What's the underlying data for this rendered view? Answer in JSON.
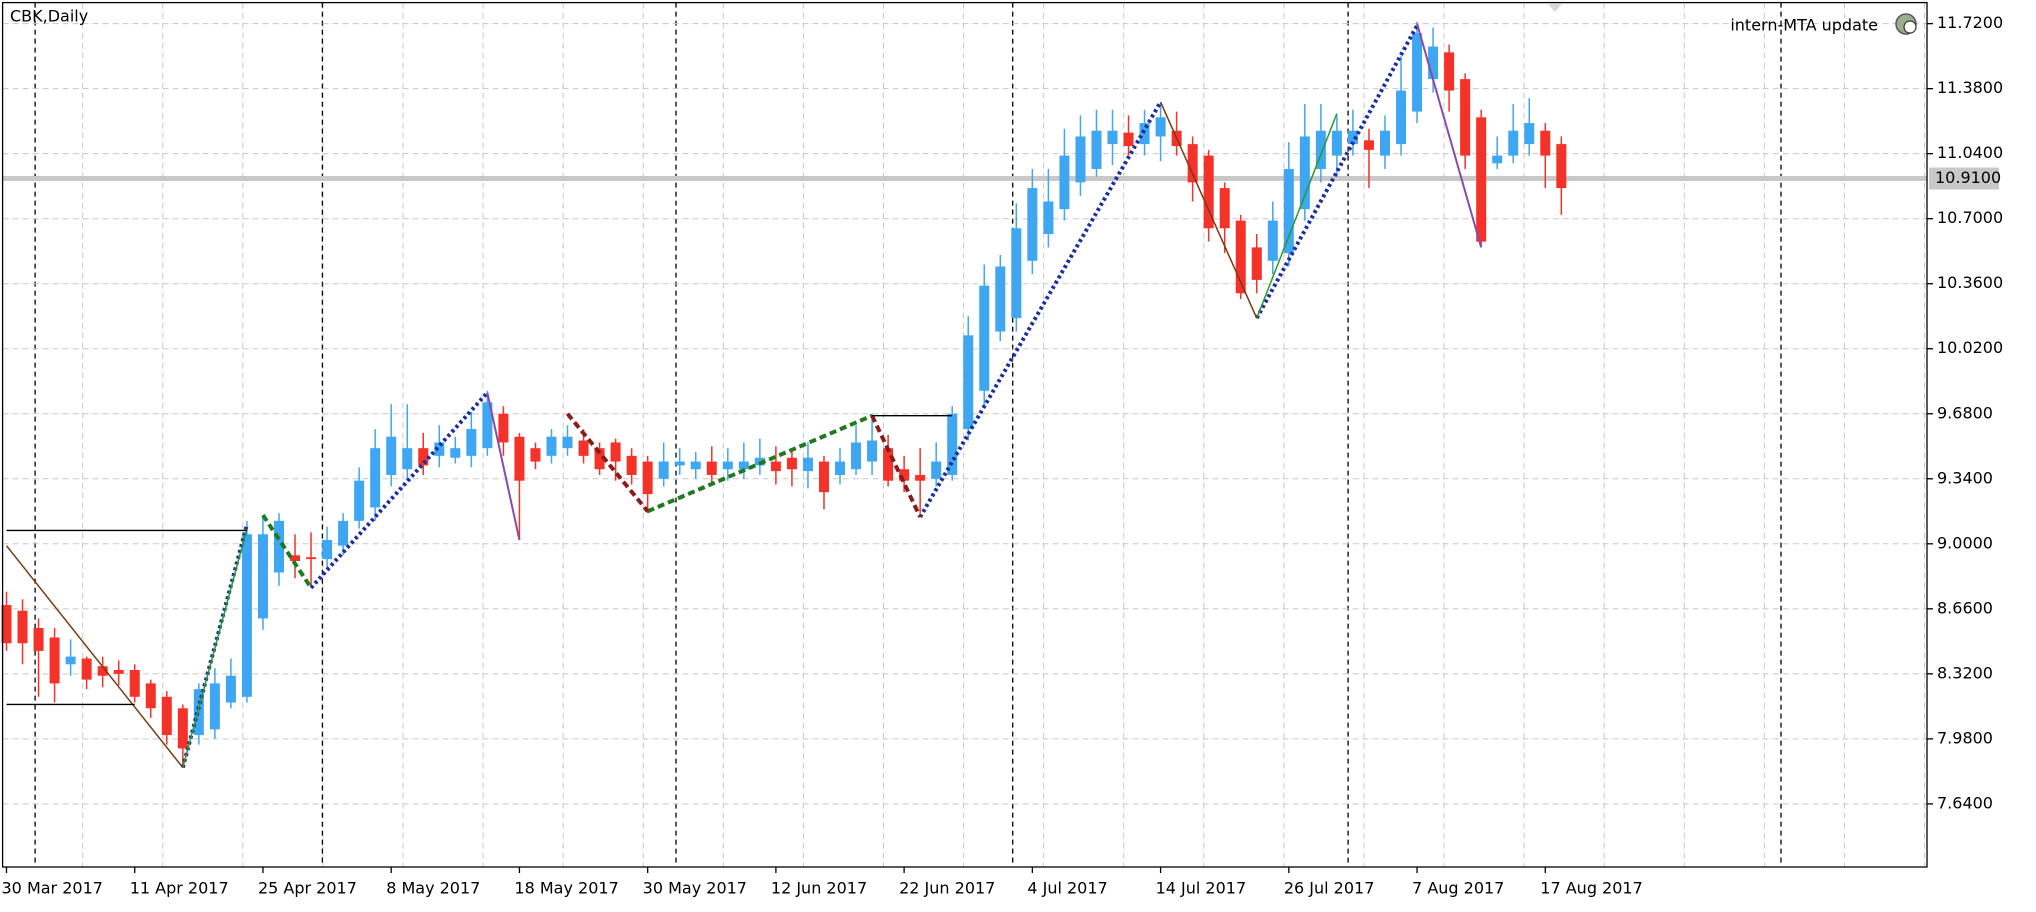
{
  "chart_data": {
    "type": "candlestick",
    "title": "CBK,Daily",
    "indicator_label": "intern-MTA update",
    "categories": [
      "30 Mar 2017",
      null,
      null,
      null,
      null,
      null,
      null,
      null,
      "11 Apr 2017",
      null,
      null,
      null,
      null,
      null,
      null,
      null,
      "25 Apr 2017",
      null,
      null,
      null,
      null,
      null,
      null,
      null,
      "8 May 2017",
      null,
      null,
      null,
      null,
      null,
      null,
      null,
      "18 May 2017",
      null,
      null,
      null,
      null,
      null,
      null,
      null,
      "30 May 2017",
      null,
      null,
      null,
      null,
      null,
      null,
      null,
      "12 Jun 2017",
      null,
      null,
      null,
      null,
      null,
      null,
      null,
      "22 Jun 2017",
      null,
      null,
      null,
      null,
      null,
      null,
      null,
      "4 Jul 2017",
      null,
      null,
      null,
      null,
      null,
      null,
      null,
      "14 Jul 2017",
      null,
      null,
      null,
      null,
      null,
      null,
      null,
      "26 Jul 2017",
      null,
      null,
      null,
      null,
      null,
      null,
      null,
      "7 Aug 2017",
      null,
      null,
      null,
      null,
      null,
      null,
      null,
      "17 Aug 2017",
      null
    ],
    "open": [
      8.68,
      8.65,
      8.56,
      8.51,
      8.37,
      8.4,
      8.36,
      8.34,
      8.34,
      8.27,
      8.2,
      8.14,
      8.0,
      8.03,
      8.17,
      8.2,
      8.61,
      8.85,
      8.94,
      8.93,
      8.92,
      8.99,
      9.12,
      9.19,
      9.36,
      9.39,
      9.5,
      9.46,
      9.45,
      9.46,
      9.5,
      9.68,
      9.56,
      9.5,
      9.46,
      9.5,
      9.54,
      9.5,
      9.53,
      9.46,
      9.43,
      9.34,
      9.41,
      9.39,
      9.43,
      9.39,
      9.39,
      9.41,
      9.43,
      9.45,
      9.38,
      9.43,
      9.36,
      9.39,
      9.43,
      9.5,
      9.39,
      9.36,
      9.34,
      9.36,
      9.6,
      9.8,
      10.11,
      10.18,
      10.48,
      10.62,
      10.75,
      10.89,
      10.96,
      11.09,
      11.15,
      11.09,
      11.13,
      11.16,
      11.09,
      11.03,
      10.86,
      10.69,
      10.55,
      10.48,
      10.52,
      10.75,
      10.96,
      11.03,
      11.09,
      11.11,
      11.03,
      11.09,
      11.26,
      11.43,
      11.57,
      11.43,
      11.23,
      10.99,
      11.03,
      11.09,
      11.16,
      11.09
    ],
    "high": [
      8.75,
      8.71,
      8.61,
      8.56,
      8.5,
      8.41,
      8.41,
      8.39,
      8.37,
      8.29,
      8.23,
      8.16,
      8.27,
      8.35,
      8.4,
      9.12,
      9.15,
      9.16,
      9.05,
      9.06,
      9.09,
      9.16,
      9.4,
      9.6,
      9.73,
      9.73,
      9.58,
      9.62,
      9.56,
      9.69,
      9.8,
      9.72,
      9.58,
      9.53,
      9.6,
      9.62,
      9.6,
      9.53,
      9.55,
      9.5,
      9.46,
      9.53,
      9.5,
      9.48,
      9.51,
      9.5,
      9.53,
      9.55,
      9.51,
      9.5,
      9.53,
      9.46,
      9.5,
      9.62,
      9.68,
      9.57,
      9.46,
      9.5,
      9.53,
      9.72,
      10.19,
      10.46,
      10.51,
      10.78,
      10.96,
      10.96,
      11.17,
      11.24,
      11.27,
      11.27,
      11.24,
      11.27,
      11.31,
      11.26,
      11.13,
      11.06,
      10.89,
      10.72,
      10.62,
      10.79,
      11.1,
      11.3,
      11.3,
      11.24,
      11.27,
      11.17,
      11.24,
      11.55,
      11.73,
      11.7,
      11.61,
      11.46,
      11.27,
      11.13,
      11.3,
      11.33,
      11.2,
      11.13
    ],
    "low": [
      8.44,
      8.37,
      8.2,
      8.17,
      8.31,
      8.24,
      8.25,
      8.26,
      8.17,
      8.09,
      7.95,
      7.83,
      7.95,
      7.98,
      8.14,
      8.17,
      8.55,
      8.78,
      8.82,
      8.78,
      8.87,
      8.94,
      9.08,
      9.12,
      9.3,
      9.33,
      9.36,
      9.4,
      9.42,
      9.4,
      9.46,
      9.46,
      9.02,
      9.39,
      9.42,
      9.46,
      9.42,
      9.36,
      9.33,
      9.31,
      9.16,
      9.3,
      9.36,
      9.34,
      9.31,
      9.33,
      9.34,
      9.36,
      9.31,
      9.3,
      9.29,
      9.18,
      9.31,
      9.36,
      9.36,
      9.3,
      9.27,
      9.16,
      9.3,
      9.33,
      9.54,
      9.72,
      10.06,
      10.11,
      10.41,
      10.55,
      10.69,
      10.82,
      10.92,
      10.98,
      11.03,
      11.03,
      11.0,
      11.03,
      10.79,
      10.58,
      10.52,
      10.28,
      10.31,
      10.41,
      10.45,
      10.69,
      10.89,
      10.92,
      11.03,
      10.86,
      10.96,
      11.03,
      11.2,
      11.36,
      11.26,
      10.96,
      10.55,
      10.96,
      10.99,
      11.03,
      10.86,
      10.72
    ],
    "close": [
      8.48,
      8.48,
      8.44,
      8.27,
      8.41,
      8.29,
      8.31,
      8.32,
      8.2,
      8.14,
      8.0,
      7.93,
      8.24,
      8.27,
      8.31,
      9.05,
      9.05,
      9.12,
      8.91,
      8.92,
      9.02,
      9.12,
      9.33,
      9.5,
      9.56,
      9.5,
      9.41,
      9.53,
      9.5,
      9.6,
      9.74,
      9.53,
      9.33,
      9.43,
      9.56,
      9.56,
      9.46,
      9.39,
      9.43,
      9.36,
      9.26,
      9.43,
      9.43,
      9.43,
      9.36,
      9.43,
      9.43,
      9.45,
      9.38,
      9.39,
      9.45,
      9.27,
      9.43,
      9.53,
      9.54,
      9.33,
      9.33,
      9.33,
      9.43,
      9.68,
      10.09,
      10.35,
      10.45,
      10.65,
      10.86,
      10.79,
      11.03,
      11.13,
      11.16,
      11.16,
      11.08,
      11.2,
      11.23,
      11.08,
      10.89,
      10.65,
      10.65,
      10.31,
      10.38,
      10.69,
      10.96,
      11.13,
      11.16,
      11.16,
      11.16,
      11.06,
      11.16,
      11.37,
      11.67,
      11.6,
      11.37,
      11.03,
      10.58,
      11.03,
      11.16,
      11.2,
      11.03,
      10.86
    ],
    "up_color": "#3fa6f2",
    "down_color": "#f5322a",
    "ylim": [
      7.31,
      11.83
    ],
    "yticks": [
      {
        "value": 7.64,
        "label": "7.6400"
      },
      {
        "value": 7.98,
        "label": "7.9800"
      },
      {
        "value": 8.32,
        "label": "8.3200"
      },
      {
        "value": 8.66,
        "label": "8.6600"
      },
      {
        "value": 9.0,
        "label": "9.0000"
      },
      {
        "value": 9.34,
        "label": "9.3400"
      },
      {
        "value": 9.68,
        "label": "9.6800"
      },
      {
        "value": 10.02,
        "label": "10.0200"
      },
      {
        "value": 10.36,
        "label": "10.3600"
      },
      {
        "value": 10.7,
        "label": "10.7000"
      },
      {
        "value": 11.04,
        "label": "11.0400"
      },
      {
        "value": 11.38,
        "label": "11.3800"
      },
      {
        "value": 11.72,
        "label": "11.7200"
      }
    ],
    "grid": true,
    "price_line": {
      "value": 10.91,
      "label": "10.9100",
      "color": "#c8c8c8"
    },
    "overlays": [
      {
        "color": "#1b2f9e",
        "dash": "3 3",
        "width": 4,
        "x": [
          11,
          15
        ],
        "values": [
          7.83,
          9.1
        ]
      },
      {
        "color": "#1b2f9e",
        "dash": "3 3",
        "width": 4,
        "x": [
          19,
          30
        ],
        "values": [
          8.77,
          9.79
        ]
      },
      {
        "color": "#1b2f9e",
        "dash": "3 3",
        "width": 4,
        "x": [
          57,
          72
        ],
        "values": [
          9.14,
          11.31
        ]
      },
      {
        "color": "#1b2f9e",
        "dash": "3 3",
        "width": 4,
        "x": [
          78,
          88
        ],
        "values": [
          10.18,
          11.71
        ]
      },
      {
        "color": "#1e7a1e",
        "dash": "7 4",
        "width": 4,
        "x": [
          16,
          19
        ],
        "values": [
          9.15,
          8.77
        ]
      },
      {
        "color": "#1e7a1e",
        "dash": "7 4",
        "width": 4,
        "x": [
          40,
          54
        ],
        "values": [
          9.17,
          9.67
        ]
      },
      {
        "color": "#8b1a1a",
        "dash": "7 4",
        "width": 4,
        "x": [
          35,
          40
        ],
        "values": [
          9.68,
          9.17
        ]
      },
      {
        "color": "#8b1a1a",
        "dash": "7 4",
        "width": 4,
        "x": [
          54,
          57
        ],
        "values": [
          9.67,
          9.14
        ]
      },
      {
        "color": "#2a9a2a",
        "dash": "none",
        "width": 1.5,
        "x": [
          11,
          15
        ],
        "values": [
          7.83,
          9.08
        ]
      },
      {
        "color": "#2a9a2a",
        "dash": "none",
        "width": 1.5,
        "x": [
          78,
          83
        ],
        "values": [
          10.18,
          11.25
        ]
      },
      {
        "color": "#7a3a10",
        "dash": "none",
        "width": 1.5,
        "x": [
          0,
          11
        ],
        "values": [
          8.99,
          7.83
        ]
      },
      {
        "color": "#7a3a10",
        "dash": "none",
        "width": 1.5,
        "x": [
          72,
          78
        ],
        "values": [
          11.31,
          10.18
        ]
      },
      {
        "color": "#8a4aa8",
        "dash": "none",
        "width": 2,
        "x": [
          30,
          32
        ],
        "values": [
          9.79,
          9.02
        ]
      },
      {
        "color": "#8a4aa8",
        "dash": "none",
        "width": 2,
        "x": [
          88,
          92
        ],
        "values": [
          11.72,
          10.55
        ]
      },
      {
        "color": "#000000",
        "dash": "none",
        "width": 1.3,
        "x": [
          0,
          15
        ],
        "values": [
          9.07,
          9.07
        ]
      },
      {
        "color": "#000000",
        "dash": "none",
        "width": 1.3,
        "x": [
          0,
          8
        ],
        "values": [
          8.16,
          8.16
        ]
      },
      {
        "color": "#000000",
        "dash": "none",
        "width": 1.3,
        "x": [
          54,
          59
        ],
        "values": [
          9.67,
          9.67
        ]
      }
    ]
  }
}
